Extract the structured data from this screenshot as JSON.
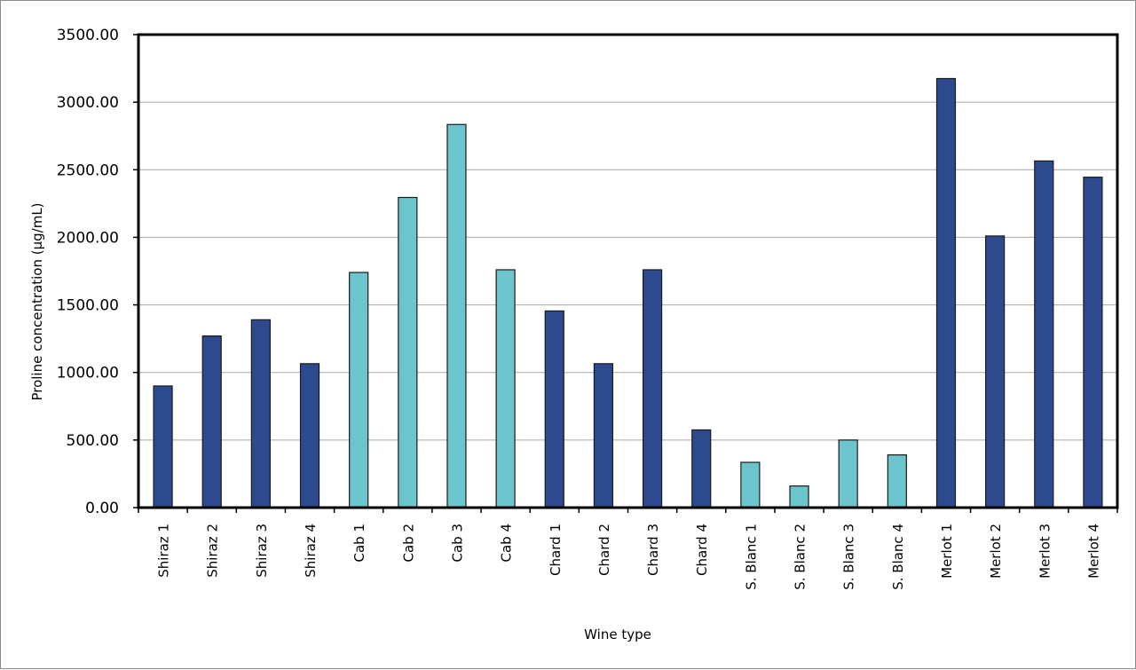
{
  "chart_data": {
    "type": "bar",
    "title": "",
    "xlabel": "Wine type",
    "ylabel": "Proline concentration (μg/mL)",
    "ylim": [
      0,
      3500
    ],
    "yticks": [
      "0.00",
      "500.00",
      "1000.00",
      "1500.00",
      "2000.00",
      "2500.00",
      "3000.00",
      "3500.00"
    ],
    "grid": true,
    "legend": "none",
    "categories": [
      "Shiraz 1",
      "Shiraz 2",
      "Shiraz 3",
      "Shiraz 4",
      "Cab 1",
      "Cab 2",
      "Cab 3",
      "Cab 4",
      "Chard 1",
      "Chard 2",
      "Chard 3",
      "Chard 4",
      "S. Blanc 1",
      "S. Blanc 2",
      "S. Blanc 3",
      "S. Blanc 4",
      "Merlot 1",
      "Merlot 2",
      "Merlot 3",
      "Merlot 4"
    ],
    "values": [
      900,
      1270,
      1390,
      1065,
      1740,
      2295,
      2835,
      1760,
      1455,
      1065,
      1760,
      575,
      335,
      160,
      500,
      390,
      3175,
      2010,
      2565,
      2445
    ],
    "bar_colors": [
      "#2E4A8E",
      "#2E4A8E",
      "#2E4A8E",
      "#2E4A8E",
      "#6CC5CD",
      "#6CC5CD",
      "#6CC5CD",
      "#6CC5CD",
      "#2E4A8E",
      "#2E4A8E",
      "#2E4A8E",
      "#2E4A8E",
      "#6CC5CD",
      "#6CC5CD",
      "#6CC5CD",
      "#6CC5CD",
      "#2E4A8E",
      "#2E4A8E",
      "#2E4A8E",
      "#2E4A8E"
    ],
    "gridline_color": "#a8a8a8",
    "frame_color": "#000000"
  }
}
